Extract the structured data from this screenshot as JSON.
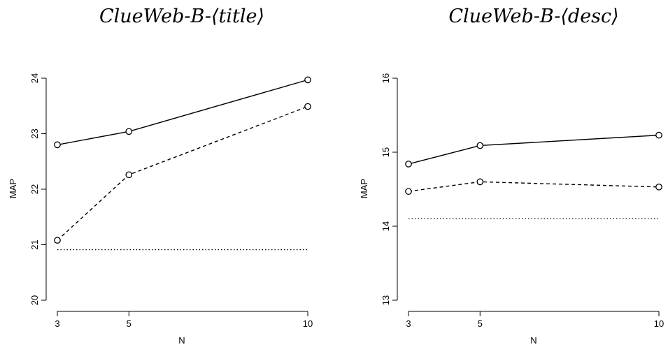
{
  "chart_data": [
    {
      "type": "line",
      "title": "ClueWeb-B-⟨title⟩",
      "xlabel": "N",
      "ylabel": "MAP",
      "x": [
        3,
        5,
        10
      ],
      "x_ticks": [
        "3",
        "5",
        "10"
      ],
      "ylim": [
        20,
        24
      ],
      "y_ticks": [
        "20",
        "21",
        "22",
        "23",
        "24"
      ],
      "grid": false,
      "series": [
        {
          "style": "solid",
          "markers": true,
          "values": [
            22.8,
            23.04,
            23.97
          ]
        },
        {
          "style": "dashed",
          "markers": true,
          "values": [
            21.08,
            22.26,
            23.49
          ]
        },
        {
          "style": "dotted",
          "markers": false,
          "values": [
            20.91,
            20.91,
            20.91
          ]
        }
      ]
    },
    {
      "type": "line",
      "title": "ClueWeb-B-⟨desc⟩",
      "xlabel": "N",
      "ylabel": "MAP",
      "x": [
        3,
        5,
        10
      ],
      "x_ticks": [
        "3",
        "5",
        "10"
      ],
      "ylim": [
        13,
        16
      ],
      "y_ticks": [
        "13",
        "14",
        "15",
        "16"
      ],
      "grid": false,
      "series": [
        {
          "style": "solid",
          "markers": true,
          "values": [
            14.84,
            15.09,
            15.23
          ]
        },
        {
          "style": "dashed",
          "markers": true,
          "values": [
            14.47,
            14.6,
            14.53
          ]
        },
        {
          "style": "dotted",
          "markers": false,
          "values": [
            14.1,
            14.1,
            14.1
          ]
        }
      ]
    }
  ]
}
